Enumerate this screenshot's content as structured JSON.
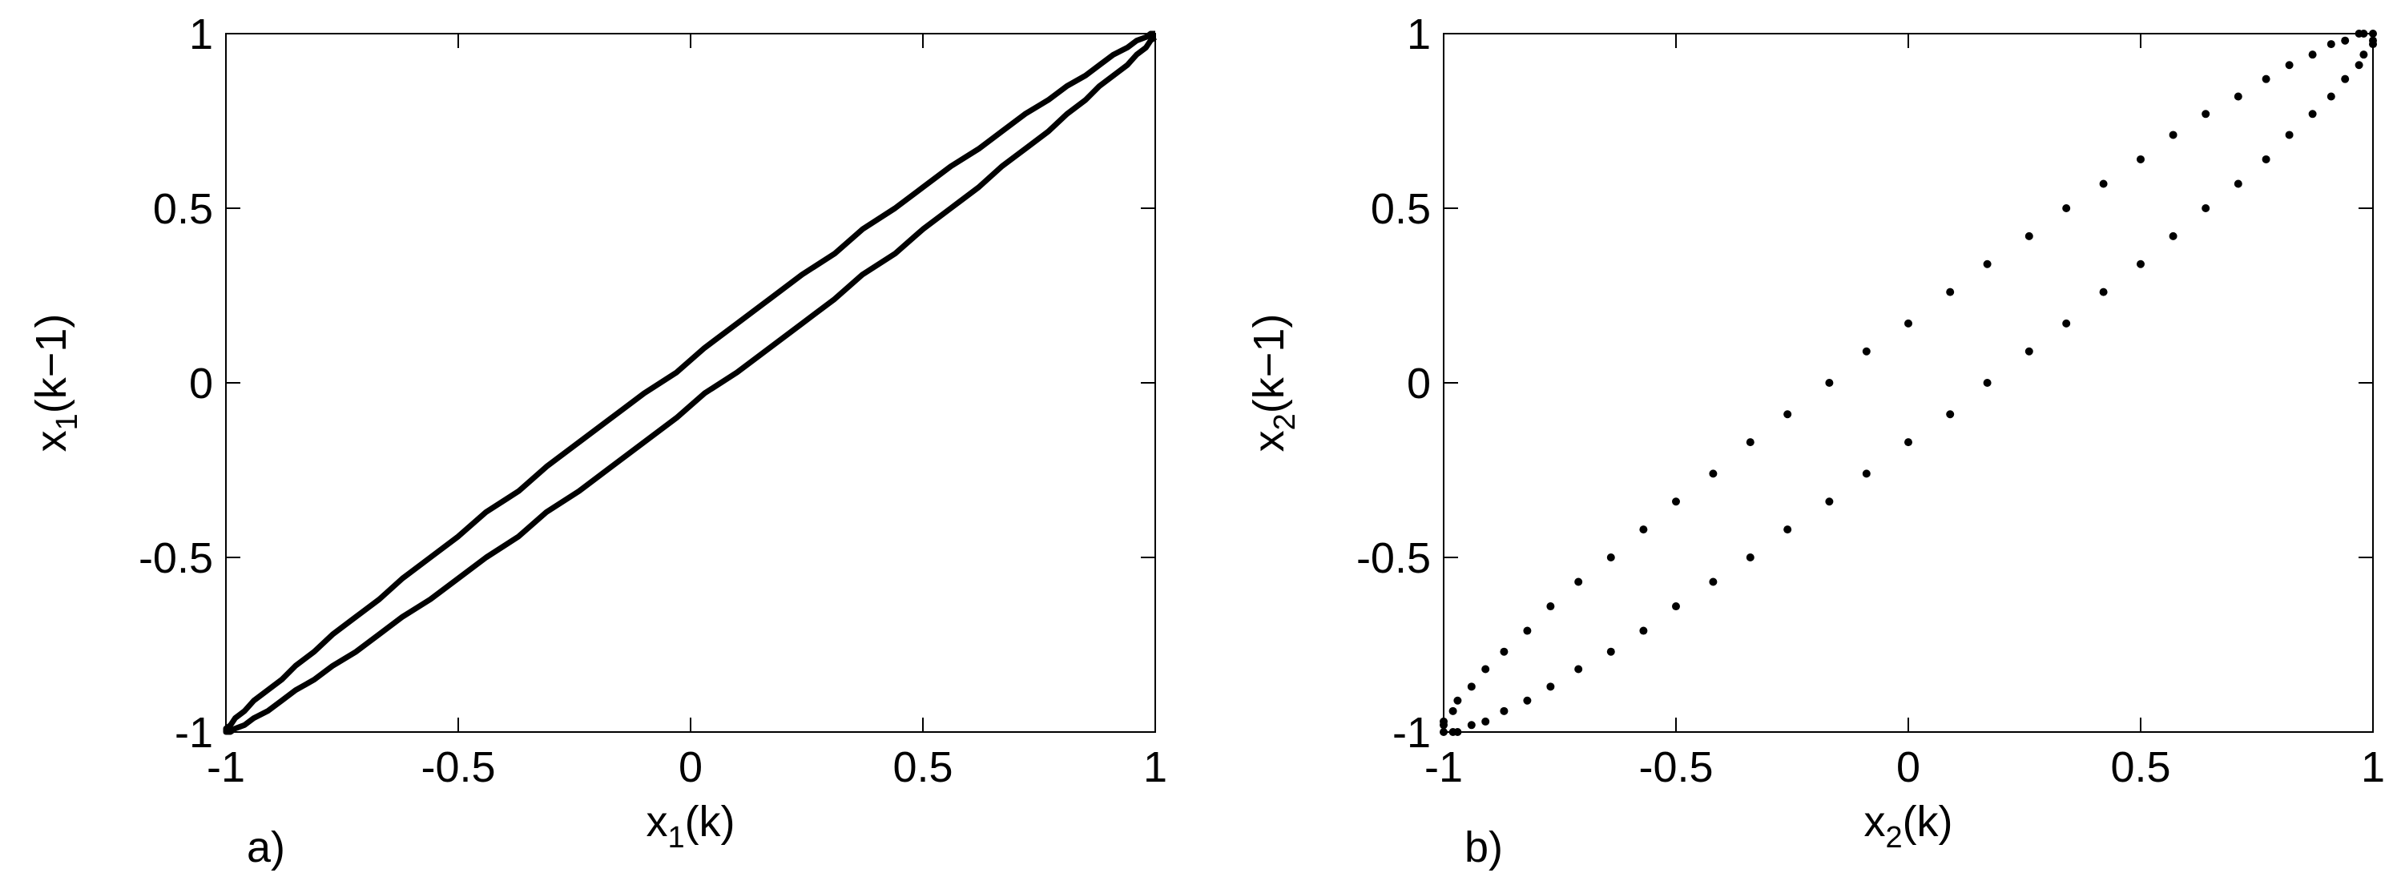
{
  "chart_data": [
    {
      "type": "line",
      "panel_label": "a)",
      "xlabel": [
        "x",
        "1",
        "(k)"
      ],
      "ylabel": [
        "x",
        "1",
        "(k−1)"
      ],
      "color": "#000000",
      "xlim": [
        -1,
        1
      ],
      "ylim": [
        -1,
        1
      ],
      "xticks": [
        -1,
        -0.5,
        0,
        0.5,
        1
      ],
      "yticks": [
        -1,
        -0.5,
        0,
        0.5,
        1
      ],
      "x": [
        1.0,
        1.0,
        0.99,
        0.98,
        0.96,
        0.94,
        0.91,
        0.88,
        0.85,
        0.81,
        0.77,
        0.72,
        0.67,
        0.62,
        0.56,
        0.5,
        0.44,
        0.37,
        0.31,
        0.24,
        0.17,
        0.1,
        0.03,
        -0.03,
        -0.1,
        -0.17,
        -0.24,
        -0.31,
        -0.37,
        -0.44,
        -0.5,
        -0.56,
        -0.62,
        -0.67,
        -0.72,
        -0.77,
        -0.81,
        -0.85,
        -0.88,
        -0.91,
        -0.94,
        -0.96,
        -0.98,
        -0.99,
        -1.0,
        -1.0,
        -1.0,
        -0.99,
        -0.98,
        -0.96,
        -0.94,
        -0.91,
        -0.88,
        -0.85,
        -0.81,
        -0.77,
        -0.72,
        -0.67,
        -0.62,
        -0.56,
        -0.5,
        -0.44,
        -0.37,
        -0.31,
        -0.24,
        -0.17,
        -0.1,
        -0.03,
        0.03,
        0.1,
        0.17,
        0.24,
        0.31,
        0.37,
        0.44,
        0.5,
        0.56,
        0.62,
        0.67,
        0.72,
        0.77,
        0.81,
        0.85,
        0.88,
        0.91,
        0.94,
        0.96,
        0.98,
        0.99,
        1.0
      ],
      "y": [
        1.0,
        1.0,
        1.0,
        0.99,
        0.98,
        0.96,
        0.94,
        0.91,
        0.88,
        0.85,
        0.81,
        0.77,
        0.72,
        0.67,
        0.62,
        0.56,
        0.5,
        0.44,
        0.37,
        0.31,
        0.24,
        0.17,
        0.1,
        0.03,
        -0.03,
        -0.1,
        -0.17,
        -0.24,
        -0.31,
        -0.37,
        -0.44,
        -0.5,
        -0.56,
        -0.62,
        -0.67,
        -0.72,
        -0.77,
        -0.81,
        -0.85,
        -0.88,
        -0.91,
        -0.94,
        -0.96,
        -0.98,
        -0.99,
        -1.0,
        -1.0,
        -1.0,
        -0.99,
        -0.98,
        -0.96,
        -0.94,
        -0.91,
        -0.88,
        -0.85,
        -0.81,
        -0.77,
        -0.72,
        -0.67,
        -0.62,
        -0.56,
        -0.5,
        -0.44,
        -0.37,
        -0.31,
        -0.24,
        -0.17,
        -0.1,
        -0.03,
        0.03,
        0.1,
        0.17,
        0.24,
        0.31,
        0.37,
        0.44,
        0.5,
        0.56,
        0.62,
        0.67,
        0.72,
        0.77,
        0.81,
        0.85,
        0.88,
        0.91,
        0.94,
        0.96,
        0.98,
        0.99
      ]
    },
    {
      "type": "scatter",
      "panel_label": "b)",
      "xlabel": [
        "x",
        "2",
        "(k)"
      ],
      "ylabel": [
        "x",
        "2",
        "(k−1)"
      ],
      "color": "#000000",
      "xlim": [
        -1,
        1
      ],
      "ylim": [
        -1,
        1
      ],
      "xticks": [
        -1,
        -0.5,
        0,
        0.5,
        1
      ],
      "yticks": [
        -1,
        -0.5,
        0,
        0.5,
        1
      ],
      "x": [
        1.0,
        1.0,
        0.98,
        0.97,
        0.94,
        0.91,
        0.87,
        0.82,
        0.77,
        0.71,
        0.64,
        0.57,
        0.5,
        0.42,
        0.34,
        0.26,
        0.17,
        0.09,
        0.0,
        -0.09,
        -0.17,
        -0.26,
        -0.34,
        -0.42,
        -0.5,
        -0.57,
        -0.64,
        -0.71,
        -0.77,
        -0.82,
        -0.87,
        -0.91,
        -0.94,
        -0.97,
        -0.98,
        -1.0,
        -1.0,
        -1.0,
        -0.98,
        -0.97,
        -0.94,
        -0.91,
        -0.87,
        -0.82,
        -0.77,
        -0.71,
        -0.64,
        -0.57,
        -0.5,
        -0.42,
        -0.34,
        -0.26,
        -0.17,
        -0.09,
        0.0,
        0.09,
        0.17,
        0.26,
        0.34,
        0.42,
        0.5,
        0.57,
        0.64,
        0.71,
        0.77,
        0.82,
        0.87,
        0.91,
        0.94,
        0.97,
        0.98,
        1.0
      ],
      "y": [
        0.98,
        1.0,
        1.0,
        1.0,
        0.98,
        0.97,
        0.94,
        0.91,
        0.87,
        0.82,
        0.77,
        0.71,
        0.64,
        0.57,
        0.5,
        0.42,
        0.34,
        0.26,
        0.17,
        0.09,
        0.0,
        -0.09,
        -0.17,
        -0.26,
        -0.34,
        -0.42,
        -0.5,
        -0.57,
        -0.64,
        -0.71,
        -0.77,
        -0.82,
        -0.87,
        -0.91,
        -0.94,
        -0.97,
        -0.98,
        -1.0,
        -1.0,
        -1.0,
        -0.98,
        -0.97,
        -0.94,
        -0.91,
        -0.87,
        -0.82,
        -0.77,
        -0.71,
        -0.64,
        -0.57,
        -0.5,
        -0.42,
        -0.34,
        -0.26,
        -0.17,
        -0.09,
        0.0,
        0.09,
        0.17,
        0.26,
        0.34,
        0.42,
        0.5,
        0.57,
        0.64,
        0.71,
        0.77,
        0.82,
        0.87,
        0.91,
        0.94,
        0.97
      ]
    }
  ]
}
